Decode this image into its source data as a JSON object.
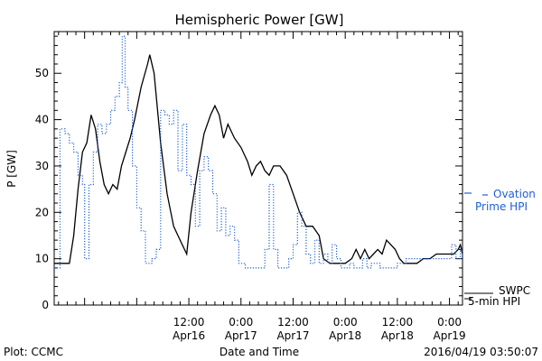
{
  "chart_data": {
    "type": "line",
    "title": "Hemispheric Power [GW]",
    "xlabel": "Date and Time",
    "ylabel": "P [GW]",
    "xlim": [
      "2016-04-15T05:00",
      "2016-04-19T03:00"
    ],
    "ylim": [
      0,
      59
    ],
    "yticks": [
      0,
      10,
      20,
      30,
      40,
      50
    ],
    "xticks": [
      {
        "t": "2016-04-16T12:00",
        "line1": "12:00",
        "line2": "Apr16"
      },
      {
        "t": "2016-04-17T00:00",
        "line1": "0:00",
        "line2": "Apr17"
      },
      {
        "t": "2016-04-17T12:00",
        "line1": "12:00",
        "line2": "Apr17"
      },
      {
        "t": "2016-04-18T00:00",
        "line1": "0:00",
        "line2": "Apr18"
      },
      {
        "t": "2016-04-18T12:00",
        "line1": "12:00",
        "line2": "Apr18"
      },
      {
        "t": "2016-04-19T00:00",
        "line1": "0:00",
        "line2": "Apr19"
      }
    ],
    "series": [
      {
        "name": "SWPC 5-min HPI",
        "color": "#000000",
        "style": "solid",
        "points": [
          [
            "2016-04-15T05:00",
            9
          ],
          [
            "2016-04-15T08:30",
            9
          ],
          [
            "2016-04-15T09:30",
            15
          ],
          [
            "2016-04-15T10:30",
            25
          ],
          [
            "2016-04-15T11:30",
            33
          ],
          [
            "2016-04-15T12:30",
            35
          ],
          [
            "2016-04-15T13:30",
            41
          ],
          [
            "2016-04-15T14:30",
            38
          ],
          [
            "2016-04-15T15:30",
            31
          ],
          [
            "2016-04-15T16:30",
            26
          ],
          [
            "2016-04-15T17:30",
            24
          ],
          [
            "2016-04-15T18:30",
            26
          ],
          [
            "2016-04-15T19:30",
            25
          ],
          [
            "2016-04-15T20:30",
            30
          ],
          [
            "2016-04-15T21:30",
            33
          ],
          [
            "2016-04-15T22:30",
            36
          ],
          [
            "2016-04-15T23:30",
            40
          ],
          [
            "2016-04-16T01:00",
            47
          ],
          [
            "2016-04-16T02:30",
            52
          ],
          [
            "2016-04-16T03:00",
            54
          ],
          [
            "2016-04-16T04:00",
            50
          ],
          [
            "2016-04-16T05:30",
            35
          ],
          [
            "2016-04-16T07:00",
            24
          ],
          [
            "2016-04-16T08:30",
            17
          ],
          [
            "2016-04-16T10:00",
            14
          ],
          [
            "2016-04-16T11:30",
            11
          ],
          [
            "2016-04-16T12:30",
            20
          ],
          [
            "2016-04-16T14:00",
            29
          ],
          [
            "2016-04-16T15:30",
            37
          ],
          [
            "2016-04-16T17:00",
            41
          ],
          [
            "2016-04-16T18:00",
            43
          ],
          [
            "2016-04-16T19:00",
            41
          ],
          [
            "2016-04-16T20:00",
            36
          ],
          [
            "2016-04-16T21:00",
            39
          ],
          [
            "2016-04-16T22:30",
            36
          ],
          [
            "2016-04-17T00:00",
            34
          ],
          [
            "2016-04-17T01:30",
            31
          ],
          [
            "2016-04-17T02:30",
            28
          ],
          [
            "2016-04-17T03:30",
            30
          ],
          [
            "2016-04-17T04:30",
            31
          ],
          [
            "2016-04-17T05:30",
            29
          ],
          [
            "2016-04-17T06:30",
            28
          ],
          [
            "2016-04-17T07:30",
            30
          ],
          [
            "2016-04-17T09:00",
            30
          ],
          [
            "2016-04-17T10:30",
            28
          ],
          [
            "2016-04-17T12:00",
            24
          ],
          [
            "2016-04-17T13:30",
            20
          ],
          [
            "2016-04-17T15:00",
            17
          ],
          [
            "2016-04-17T16:30",
            17
          ],
          [
            "2016-04-17T18:00",
            15
          ],
          [
            "2016-04-17T19:00",
            10
          ],
          [
            "2016-04-17T20:30",
            9
          ],
          [
            "2016-04-17T22:00",
            9
          ],
          [
            "2016-04-18T00:00",
            9
          ],
          [
            "2016-04-18T01:30",
            10
          ],
          [
            "2016-04-18T02:30",
            12
          ],
          [
            "2016-04-18T03:30",
            10
          ],
          [
            "2016-04-18T04:30",
            12
          ],
          [
            "2016-04-18T05:30",
            10
          ],
          [
            "2016-04-18T06:30",
            11
          ],
          [
            "2016-04-18T07:30",
            12
          ],
          [
            "2016-04-18T08:30",
            11
          ],
          [
            "2016-04-18T09:30",
            14
          ],
          [
            "2016-04-18T10:30",
            13
          ],
          [
            "2016-04-18T11:30",
            12
          ],
          [
            "2016-04-18T12:30",
            10
          ],
          [
            "2016-04-18T13:30",
            9
          ],
          [
            "2016-04-18T15:00",
            9
          ],
          [
            "2016-04-18T16:30",
            9
          ],
          [
            "2016-04-18T18:00",
            10
          ],
          [
            "2016-04-18T19:30",
            10
          ],
          [
            "2016-04-18T21:00",
            11
          ],
          [
            "2016-04-18T22:30",
            11
          ],
          [
            "2016-04-19T00:00",
            11
          ],
          [
            "2016-04-19T01:00",
            11
          ],
          [
            "2016-04-19T02:00",
            12
          ],
          [
            "2016-04-19T02:30",
            13
          ],
          [
            "2016-04-19T03:00",
            11
          ]
        ]
      },
      {
        "name": "Ovation Prime HPI",
        "color": "#1f5fd1",
        "style": "dotted-step",
        "points": [
          [
            "2016-04-15T05:00",
            8
          ],
          [
            "2016-04-15T06:20",
            38
          ],
          [
            "2016-04-15T07:30",
            37
          ],
          [
            "2016-04-15T08:30",
            35
          ],
          [
            "2016-04-15T09:30",
            33
          ],
          [
            "2016-04-15T10:30",
            28
          ],
          [
            "2016-04-15T11:30",
            26
          ],
          [
            "2016-04-15T12:00",
            10
          ],
          [
            "2016-04-15T13:00",
            26
          ],
          [
            "2016-04-15T14:00",
            33
          ],
          [
            "2016-04-15T15:00",
            39
          ],
          [
            "2016-04-15T16:00",
            37
          ],
          [
            "2016-04-15T17:00",
            39
          ],
          [
            "2016-04-15T18:00",
            42
          ],
          [
            "2016-04-15T19:00",
            45
          ],
          [
            "2016-04-15T20:00",
            48
          ],
          [
            "2016-04-15T20:40",
            58
          ],
          [
            "2016-04-15T21:20",
            47
          ],
          [
            "2016-04-15T22:00",
            42
          ],
          [
            "2016-04-15T23:00",
            30
          ],
          [
            "2016-04-16T00:00",
            21
          ],
          [
            "2016-04-16T01:00",
            16
          ],
          [
            "2016-04-16T02:00",
            9
          ],
          [
            "2016-04-16T03:30",
            10
          ],
          [
            "2016-04-16T04:30",
            12
          ],
          [
            "2016-04-16T05:30",
            42
          ],
          [
            "2016-04-16T06:30",
            41
          ],
          [
            "2016-04-16T07:30",
            39
          ],
          [
            "2016-04-16T08:30",
            42
          ],
          [
            "2016-04-16T09:30",
            29
          ],
          [
            "2016-04-16T10:30",
            39
          ],
          [
            "2016-04-16T11:30",
            28
          ],
          [
            "2016-04-16T12:30",
            26
          ],
          [
            "2016-04-16T13:30",
            17
          ],
          [
            "2016-04-16T14:30",
            29
          ],
          [
            "2016-04-16T15:30",
            32
          ],
          [
            "2016-04-16T16:30",
            29
          ],
          [
            "2016-04-16T17:30",
            24
          ],
          [
            "2016-04-16T18:30",
            16
          ],
          [
            "2016-04-16T19:30",
            21
          ],
          [
            "2016-04-16T20:30",
            15
          ],
          [
            "2016-04-16T21:30",
            17
          ],
          [
            "2016-04-16T22:30",
            14
          ],
          [
            "2016-04-16T23:30",
            9
          ],
          [
            "2016-04-17T01:00",
            8
          ],
          [
            "2016-04-17T03:00",
            8
          ],
          [
            "2016-04-17T04:30",
            8
          ],
          [
            "2016-04-17T05:30",
            12
          ],
          [
            "2016-04-17T06:30",
            26
          ],
          [
            "2016-04-17T07:30",
            12
          ],
          [
            "2016-04-17T08:30",
            8
          ],
          [
            "2016-04-17T10:00",
            8
          ],
          [
            "2016-04-17T11:00",
            10
          ],
          [
            "2016-04-17T12:00",
            13
          ],
          [
            "2016-04-17T13:00",
            20
          ],
          [
            "2016-04-17T14:00",
            17
          ],
          [
            "2016-04-17T15:00",
            11
          ],
          [
            "2016-04-17T16:00",
            9
          ],
          [
            "2016-04-17T17:00",
            14
          ],
          [
            "2016-04-17T18:00",
            9
          ],
          [
            "2016-04-17T19:00",
            11
          ],
          [
            "2016-04-17T20:00",
            9
          ],
          [
            "2016-04-17T21:00",
            13
          ],
          [
            "2016-04-17T22:00",
            10
          ],
          [
            "2016-04-17T23:00",
            8
          ],
          [
            "2016-04-18T00:00",
            8
          ],
          [
            "2016-04-18T01:00",
            9
          ],
          [
            "2016-04-18T02:00",
            8
          ],
          [
            "2016-04-18T03:00",
            8
          ],
          [
            "2016-04-18T04:00",
            10
          ],
          [
            "2016-04-18T05:00",
            8
          ],
          [
            "2016-04-18T06:00",
            9
          ],
          [
            "2016-04-18T08:00",
            8
          ],
          [
            "2016-04-18T10:00",
            8
          ],
          [
            "2016-04-18T12:00",
            9
          ],
          [
            "2016-04-18T14:00",
            10
          ],
          [
            "2016-04-18T16:00",
            10
          ],
          [
            "2016-04-18T18:00",
            10
          ],
          [
            "2016-04-18T20:00",
            10
          ],
          [
            "2016-04-18T22:00",
            10
          ],
          [
            "2016-04-19T00:00",
            10
          ],
          [
            "2016-04-19T00:30",
            13
          ],
          [
            "2016-04-19T01:30",
            10
          ],
          [
            "2016-04-19T02:30",
            12
          ],
          [
            "2016-04-19T03:00",
            11
          ]
        ]
      }
    ],
    "legend": [
      {
        "series": "Ovation Prime HPI",
        "line1": "Ovation",
        "line2": "Prime HPI",
        "color": "#1f5fd1"
      },
      {
        "series": "SWPC 5-min HPI",
        "line1": "SWPC",
        "line2": "5-min HPI",
        "color": "#000000"
      }
    ],
    "legend_position": "right",
    "grid": false
  },
  "footer": {
    "plot_credit": "Plot: CCMC",
    "timestamp": "2016/04/19 03:50:07"
  }
}
